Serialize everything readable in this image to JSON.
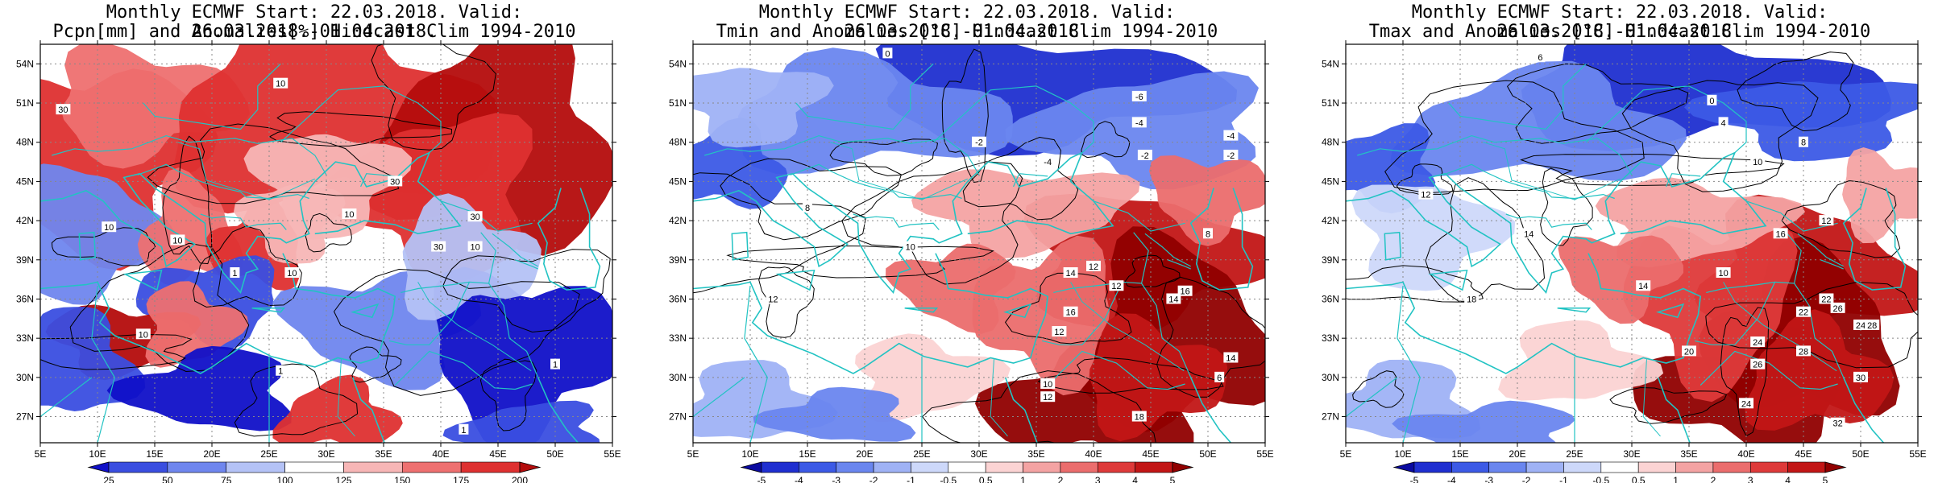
{
  "panels": [
    {
      "id": "pcpn",
      "title_line1": "Monthly ECMWF Start: 22.03.2018. Valid: 26.03.2018.-01.04.2018.",
      "title_line2": "Pcpn[mm] and Anomalies[%] Hindcast Clim 1994-2010",
      "colorbar_labels": [
        "25",
        "50",
        "75",
        "100",
        "125",
        "150",
        "175",
        "200"
      ],
      "colorbar_colors": [
        "#1010c8",
        "#3a4ee0",
        "#6f86ee",
        "#b4c2f6",
        "#ffffff",
        "#f7b6b6",
        "#ee7070",
        "#de3030",
        "#b40c0c"
      ],
      "contour_labels": [
        "30",
        "10",
        "10",
        "10",
        "10",
        "30",
        "30",
        "10",
        "30",
        "10",
        "1",
        "10",
        "1",
        "1",
        "1"
      ]
    },
    {
      "id": "tmin",
      "title_line1": "Monthly ECMWF Start: 22.03.2018. Valid: 26.03.2018.-01.04.2018.",
      "title_line2": "Tmin and Anomalies [°C] Hindcast Clim 1994-2010",
      "colorbar_labels": [
        "-5",
        "-4",
        "-3",
        "-2",
        "-1",
        "-0.5",
        "0.5",
        "1",
        "2",
        "3",
        "4",
        "5"
      ],
      "colorbar_colors": [
        "#0a0aa0",
        "#1f2fd0",
        "#3c5ae6",
        "#6a86ef",
        "#9fb2f5",
        "#cdd8fa",
        "#ffffff",
        "#fbd3d3",
        "#f4a3a3",
        "#eb6d6d",
        "#de3a3a",
        "#c21616",
        "#900000"
      ],
      "contour_labels": [
        "0",
        "-2",
        "-6",
        "-4",
        "-2",
        "-4",
        "-2",
        "-4",
        "8",
        "10",
        "12",
        "12",
        "14",
        "16",
        "16",
        "8",
        "10",
        "12",
        "12",
        "14",
        "12",
        "14",
        "18",
        "6"
      ]
    },
    {
      "id": "tmax",
      "title_line1": "Monthly ECMWF Start: 22.03.2018. Valid: 26.03.2018.-01.04.2018.",
      "title_line2": "Tmax and Anomalies [°C] Hindcast Clim 1994-2010",
      "colorbar_labels": [
        "-5",
        "-4",
        "-3",
        "-2",
        "-1",
        "-0.5",
        "0.5",
        "1",
        "2",
        "3",
        "4",
        "5"
      ],
      "colorbar_colors": [
        "#0a0aa0",
        "#1f2fd0",
        "#3c5ae6",
        "#6a86ef",
        "#9fb2f5",
        "#cdd8fa",
        "#ffffff",
        "#fbd3d3",
        "#f4a3a3",
        "#eb6d6d",
        "#de3a3a",
        "#c21616",
        "#900000"
      ],
      "contour_labels": [
        "6",
        "0",
        "4",
        "8",
        "10",
        "12",
        "14",
        "12",
        "10",
        "18",
        "14",
        "16",
        "22",
        "26",
        "24",
        "28",
        "32",
        "26",
        "24",
        "20",
        "24",
        "22",
        "28",
        "30"
      ]
    }
  ],
  "axes": {
    "lon_labels": [
      "5E",
      "10E",
      "15E",
      "20E",
      "25E",
      "30E",
      "35E",
      "40E",
      "45E",
      "50E",
      "55E"
    ],
    "lat_labels": [
      "54N",
      "51N",
      "48N",
      "45N",
      "42N",
      "39N",
      "36N",
      "33N",
      "30N",
      "27N"
    ]
  }
}
